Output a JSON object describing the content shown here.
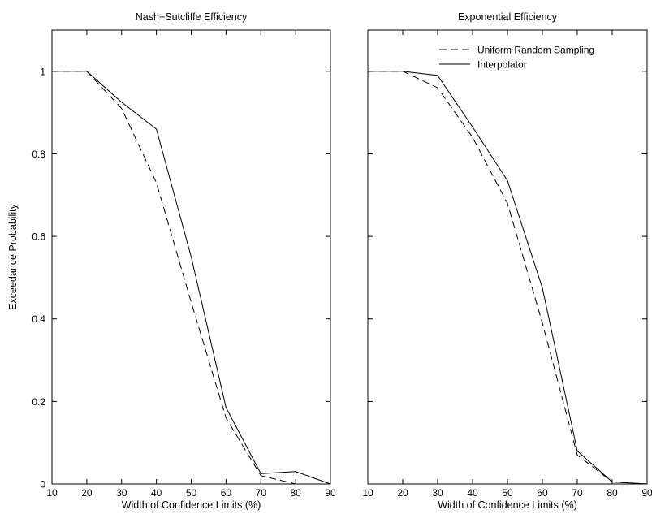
{
  "chart_data": [
    {
      "type": "line",
      "title": "Nash−Sutcliffe Efficiency",
      "xlabel": "Width of Confidence Limits (%)",
      "ylabel": "Exceedance Probability",
      "x": [
        10,
        20,
        30,
        40,
        50,
        60,
        70,
        80,
        90
      ],
      "xlim": [
        10,
        90
      ],
      "ylim": [
        0,
        1.1
      ],
      "xticks": [
        "10",
        "20",
        "30",
        "40",
        "50",
        "60",
        "70",
        "80",
        "90"
      ],
      "yticks": [
        "0",
        "0.2",
        "0.4",
        "0.6",
        "0.8",
        "1"
      ],
      "grid": false,
      "legend": null,
      "series": [
        {
          "name": "Uniform Random Sampling",
          "style": "dashed",
          "color": "#000000",
          "values": [
            1.0,
            1.0,
            0.91,
            0.73,
            0.44,
            0.16,
            0.02,
            0.0,
            0.0
          ]
        },
        {
          "name": "Interpolator",
          "style": "solid",
          "color": "#000000",
          "values": [
            1.0,
            1.0,
            0.925,
            0.86,
            0.55,
            0.185,
            0.025,
            0.03,
            0.0
          ]
        }
      ]
    },
    {
      "type": "line",
      "title": "Exponential Efficiency",
      "xlabel": "Width of Confidence Limits (%)",
      "ylabel": "",
      "x": [
        10,
        20,
        30,
        40,
        50,
        60,
        70,
        80,
        90
      ],
      "xlim": [
        10,
        90
      ],
      "ylim": [
        0,
        1.1
      ],
      "xticks": [
        "10",
        "20",
        "30",
        "40",
        "50",
        "60",
        "70",
        "80",
        "90"
      ],
      "yticks": [],
      "grid": false,
      "legend": "top-right",
      "series": [
        {
          "name": "Uniform Random Sampling",
          "style": "dashed",
          "color": "#000000",
          "values": [
            1.0,
            1.0,
            0.96,
            0.84,
            0.68,
            0.39,
            0.07,
            0.005,
            0.0
          ]
        },
        {
          "name": "Interpolator",
          "style": "solid",
          "color": "#000000",
          "values": [
            1.0,
            1.0,
            0.99,
            0.865,
            0.735,
            0.475,
            0.08,
            0.005,
            0.0
          ]
        }
      ]
    }
  ]
}
